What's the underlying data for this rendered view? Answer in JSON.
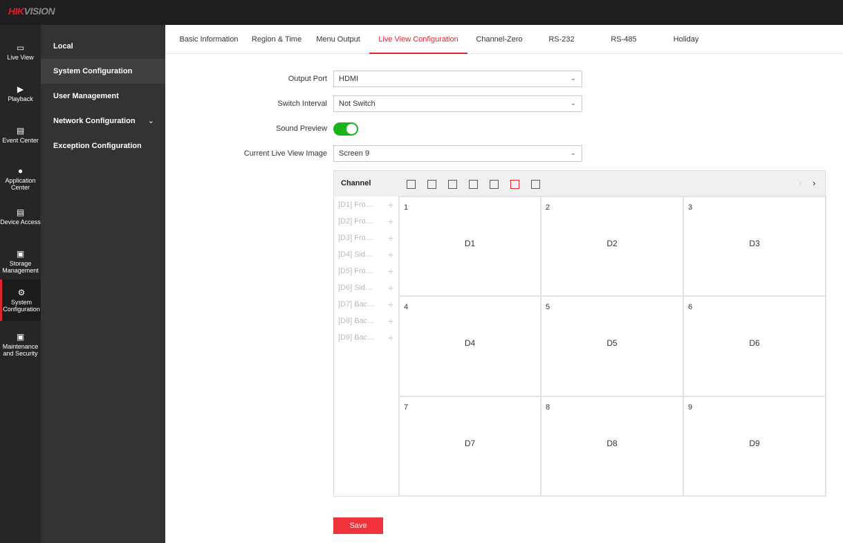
{
  "app": {
    "logo_red": "HIK",
    "logo_gray": "VISION",
    "accent": "#e0252e"
  },
  "nav_main": [
    {
      "label": "Live View",
      "icon": "monitor-icon"
    },
    {
      "label": "Playback",
      "icon": "playback-icon"
    },
    {
      "label": "Event Center",
      "icon": "clipboard-icon"
    },
    {
      "label": "Application Center",
      "icon": "ai-head-icon"
    },
    {
      "label": "Device Access",
      "icon": "device-icon"
    },
    {
      "label": "Storage Management",
      "icon": "hdd-icon"
    },
    {
      "label": "System Configuration",
      "icon": "gear-icon",
      "active": true
    },
    {
      "label": "Maintenance and Security",
      "icon": "maintenance-icon"
    }
  ],
  "nav_sub": [
    {
      "label": "Local"
    },
    {
      "label": "System Configuration",
      "active": true
    },
    {
      "label": "User Management"
    },
    {
      "label": "Network Configuration",
      "expandable": true
    },
    {
      "label": "Exception Configuration"
    }
  ],
  "tabs": [
    {
      "label": "Basic Information"
    },
    {
      "label": "Region & Time"
    },
    {
      "label": "Menu Output"
    },
    {
      "label": "Live View Configuration",
      "active": true
    },
    {
      "label": "Channel-Zero"
    },
    {
      "label": "RS-232"
    },
    {
      "label": "RS-485"
    },
    {
      "label": "Holiday"
    }
  ],
  "form": {
    "output_port": {
      "label": "Output Port",
      "value": "HDMI"
    },
    "switch_interval": {
      "label": "Switch Interval",
      "value": "Not Switch"
    },
    "sound_preview": {
      "label": "Sound Preview",
      "enabled": true
    },
    "current_image": {
      "label": "Current Live View Image",
      "value": "Screen 9"
    }
  },
  "panel": {
    "title": "Channel",
    "layouts": [
      "1-window",
      "2-window",
      "4-window",
      "6-window",
      "8-window",
      "9-window",
      "16-window"
    ],
    "active_layout": "9-window",
    "channels": [
      "[D1] Fro…",
      "[D2] Fro…",
      "[D3] Fro…",
      "[D4] Sid…",
      "[D5] Fro…",
      "[D6] Sid…",
      "[D7] Bac…",
      "[D8] Bac…",
      "[D9] Bac…"
    ],
    "cells": [
      {
        "num": "1",
        "ch": "D1"
      },
      {
        "num": "2",
        "ch": "D2"
      },
      {
        "num": "3",
        "ch": "D3"
      },
      {
        "num": "4",
        "ch": "D4"
      },
      {
        "num": "5",
        "ch": "D5"
      },
      {
        "num": "6",
        "ch": "D6"
      },
      {
        "num": "7",
        "ch": "D7"
      },
      {
        "num": "8",
        "ch": "D8"
      },
      {
        "num": "9",
        "ch": "D9"
      }
    ]
  },
  "save_label": "Save"
}
